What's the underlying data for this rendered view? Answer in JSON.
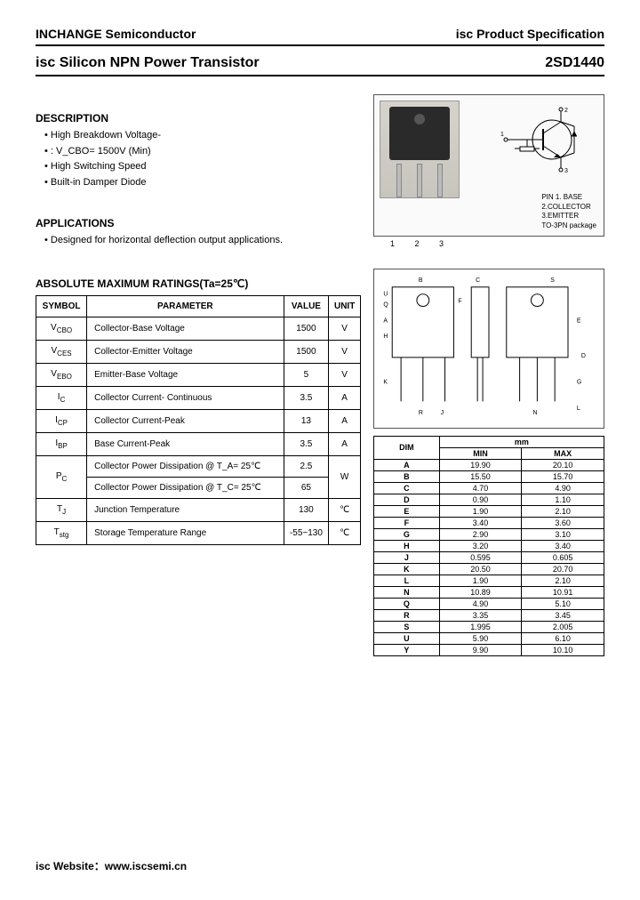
{
  "header": {
    "company": "INCHANGE Semiconductor",
    "docType": "isc Product Specification"
  },
  "title": {
    "product": "isc Silicon NPN Power Transistor",
    "part": "2SD1440"
  },
  "description": {
    "heading": "DESCRIPTION",
    "items": [
      "High Breakdown Voltage-",
      ": V_CBO= 1500V (Min)",
      "High Switching Speed",
      "Built-in Damper Diode"
    ]
  },
  "applications": {
    "heading": "APPLICATIONS",
    "items": [
      "Designed for horizontal deflection output applications."
    ]
  },
  "pins": {
    "legend": [
      "PIN 1. BASE",
      "2.COLLECTOR",
      "3.EMITTER",
      "TO-3PN package"
    ],
    "nums": [
      "1",
      "2",
      "3"
    ]
  },
  "ratingsTitle": "ABSOLUTE MAXIMUM RATINGS(Ta=25℃)",
  "ratingsHeaders": [
    "SYMBOL",
    "PARAMETER",
    "VALUE",
    "UNIT"
  ],
  "ratings": [
    {
      "sym": "V_CBO",
      "param": "Collector-Base Voltage",
      "val": "1500",
      "unit": "V"
    },
    {
      "sym": "V_CES",
      "param": "Collector-Emitter Voltage",
      "val": "1500",
      "unit": "V"
    },
    {
      "sym": "V_EBO",
      "param": "Emitter-Base Voltage",
      "val": "5",
      "unit": "V"
    },
    {
      "sym": "I_C",
      "param": "Collector Current- Continuous",
      "val": "3.5",
      "unit": "A"
    },
    {
      "sym": "I_CP",
      "param": "Collector Current-Peak",
      "val": "13",
      "unit": "A"
    },
    {
      "sym": "I_BP",
      "param": "Base Current-Peak",
      "val": "3.5",
      "unit": "A"
    },
    {
      "sym": "P_C",
      "param": "Collector Power Dissipation @ T_A= 25℃",
      "val": "2.5",
      "unit": "W",
      "merge": true
    },
    {
      "sym": "",
      "param": "Collector Power Dissipation @ T_C= 25℃",
      "val": "65",
      "unit": "",
      "mergedRow": true
    },
    {
      "sym": "T_J",
      "param": "Junction Temperature",
      "val": "130",
      "unit": "℃"
    },
    {
      "sym": "T_stg",
      "param": "Storage Temperature Range",
      "val": "-55~130",
      "unit": "℃"
    }
  ],
  "dimsHeader": {
    "dim": "DIM",
    "unit": "mm",
    "min": "MIN",
    "max": "MAX"
  },
  "dims": [
    {
      "d": "A",
      "min": "19.90",
      "max": "20.10"
    },
    {
      "d": "B",
      "min": "15.50",
      "max": "15.70"
    },
    {
      "d": "C",
      "min": "4.70",
      "max": "4.90"
    },
    {
      "d": "D",
      "min": "0.90",
      "max": "1.10"
    },
    {
      "d": "E",
      "min": "1.90",
      "max": "2.10"
    },
    {
      "d": "F",
      "min": "3.40",
      "max": "3.60"
    },
    {
      "d": "G",
      "min": "2.90",
      "max": "3.10"
    },
    {
      "d": "H",
      "min": "3.20",
      "max": "3.40"
    },
    {
      "d": "J",
      "min": "0.595",
      "max": "0.605"
    },
    {
      "d": "K",
      "min": "20.50",
      "max": "20.70"
    },
    {
      "d": "L",
      "min": "1.90",
      "max": "2.10"
    },
    {
      "d": "N",
      "min": "10.89",
      "max": "10.91"
    },
    {
      "d": "Q",
      "min": "4.90",
      "max": "5.10"
    },
    {
      "d": "R",
      "min": "3.35",
      "max": "3.45"
    },
    {
      "d": "S",
      "min": "1.995",
      "max": "2.005"
    },
    {
      "d": "U",
      "min": "5.90",
      "max": "6.10"
    },
    {
      "d": "Y",
      "min": "9.90",
      "max": "10.10"
    }
  ],
  "footer": "isc Website：www.iscsemi.cn",
  "colors": {
    "text": "#000000",
    "border": "#000000",
    "pkgBg": "#d6d2cc"
  }
}
